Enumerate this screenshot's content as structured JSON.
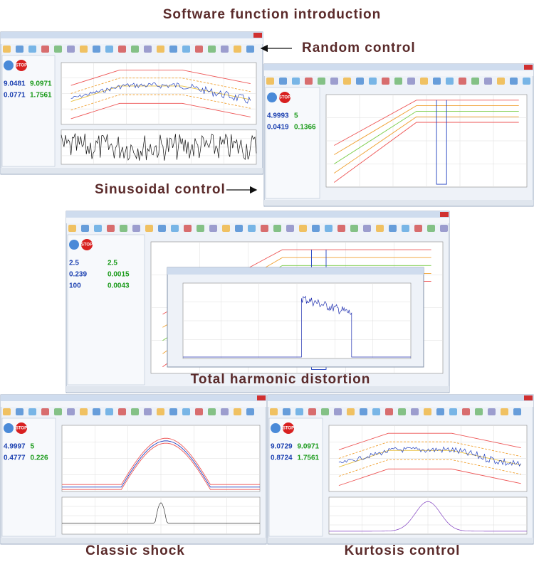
{
  "header": {
    "title": "Software function introduction"
  },
  "callouts": [
    "Random control",
    "Sinusoidal control",
    "Total harmonic distortion",
    "Classic shock",
    "Kurtosis control"
  ],
  "screens": [
    {
      "kind": "random",
      "stop": "STOP",
      "readouts": [
        "9.0481",
        "9.0971",
        "0.0771",
        "1.7561"
      ]
    },
    {
      "kind": "sine",
      "stop": "STOP",
      "readouts": [
        "4.9993",
        "5",
        "0.0419",
        "0.1366"
      ]
    },
    {
      "kind": "thd",
      "stop": "STOP",
      "readouts": [
        "2.5",
        "2.5",
        "0.239",
        "0.0015",
        "100",
        "0.0043"
      ]
    },
    {
      "kind": "shock",
      "stop": "STOP",
      "readouts": [
        "4.9997",
        "5",
        "0.4777",
        "0.226"
      ]
    },
    {
      "kind": "kurtosis",
      "stop": "STOP",
      "readouts": [
        "9.0729",
        "9.0971",
        "0.8724",
        "1.7561"
      ]
    }
  ]
}
